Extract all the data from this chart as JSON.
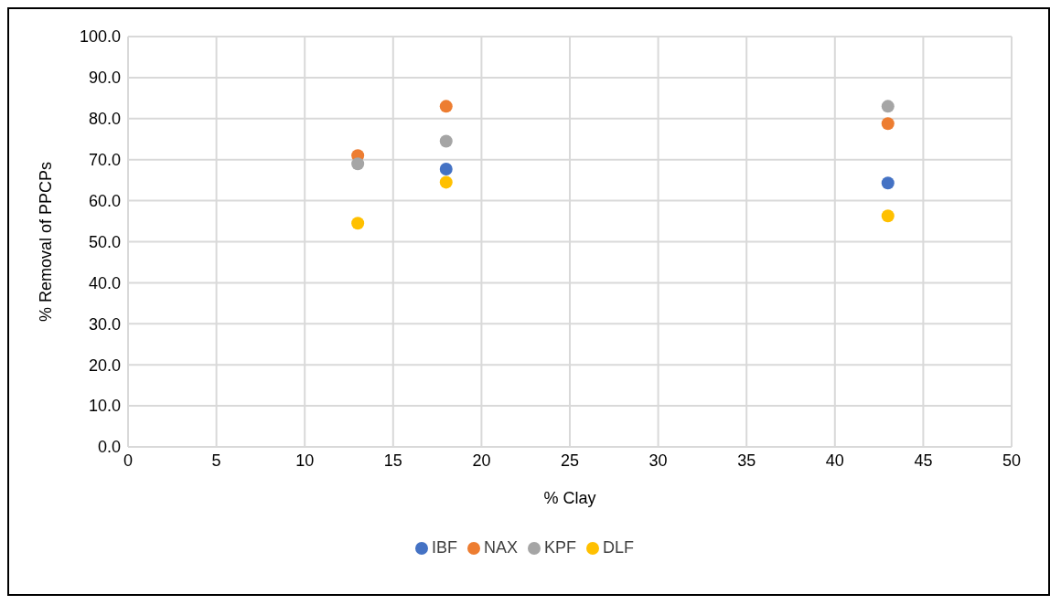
{
  "chart_data": {
    "type": "scatter",
    "xlabel": "% Clay",
    "ylabel": "% Removal of PPCPs",
    "x": [
      13,
      18,
      43
    ],
    "series": [
      {
        "name": "IBF",
        "color": "#4472c4",
        "values": [
          null,
          67.7,
          64.3
        ]
      },
      {
        "name": "NAX",
        "color": "#ed7d31",
        "values": [
          71.0,
          83.0,
          78.8
        ]
      },
      {
        "name": "KPF",
        "color": "#a5a5a5",
        "values": [
          69.0,
          74.5,
          83.0
        ]
      },
      {
        "name": "DLF",
        "color": "#ffc000",
        "values": [
          54.5,
          64.5,
          56.3
        ]
      }
    ],
    "xlim": [
      0,
      50
    ],
    "xticks": [
      0,
      5,
      10,
      15,
      20,
      25,
      30,
      35,
      40,
      45,
      50
    ],
    "ylim": [
      0,
      100
    ],
    "yticks": [
      {
        "value": 0,
        "label": "0.0"
      },
      {
        "value": 10,
        "label": "10.0"
      },
      {
        "value": 20,
        "label": "20.0"
      },
      {
        "value": 30,
        "label": "30.0"
      },
      {
        "value": 40,
        "label": "40.0"
      },
      {
        "value": 50,
        "label": "50.0"
      },
      {
        "value": 60,
        "label": "60.0"
      },
      {
        "value": 70,
        "label": "70.0"
      },
      {
        "value": 80,
        "label": "80.0"
      },
      {
        "value": 90,
        "label": "90.0"
      },
      {
        "value": 100,
        "label": "100.0"
      }
    ],
    "grid": true,
    "legend": "bottom",
    "marker": "circle"
  }
}
